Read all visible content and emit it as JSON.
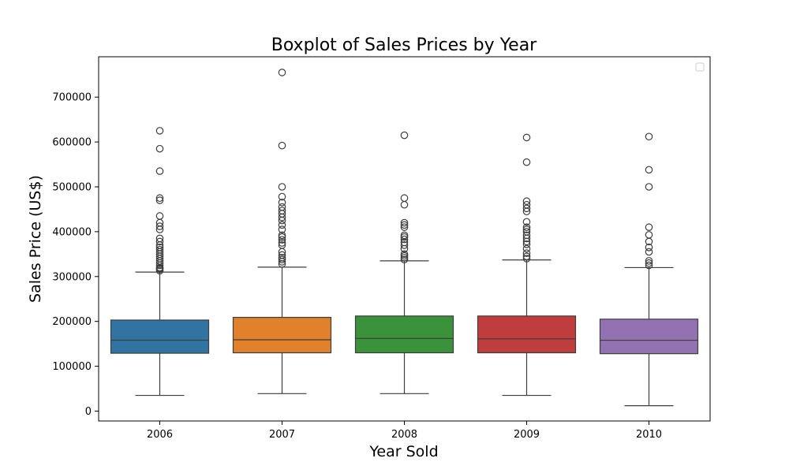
{
  "chart_data": {
    "type": "boxplot",
    "title": "Boxplot of Sales Prices by Year",
    "xlabel": "Year Sold",
    "ylabel": "Sales Price (US$)",
    "ylim": [
      -22000,
      790000
    ],
    "yticks": [
      0,
      100000,
      200000,
      300000,
      400000,
      500000,
      600000,
      700000
    ],
    "ytick_labels": [
      "0",
      "100000",
      "200000",
      "300000",
      "400000",
      "500000",
      "600000",
      "700000"
    ],
    "grid": false,
    "legend": "top-right (empty)",
    "categories": [
      "2006",
      "2007",
      "2008",
      "2009",
      "2010"
    ],
    "boxes": [
      {
        "category": "2006",
        "color": "#3274a1",
        "whisker_low": 35000,
        "q1": 129000,
        "median": 158000,
        "q3": 203000,
        "whisker_high": 310000,
        "outliers": [
          313000,
          316000,
          318000,
          320000,
          325000,
          330000,
          335000,
          340000,
          345000,
          350000,
          355000,
          360000,
          365000,
          370000,
          378000,
          385000,
          405000,
          412000,
          420000,
          435000,
          470000,
          475000,
          535000,
          585000,
          625000
        ]
      },
      {
        "category": "2007",
        "color": "#e1812c",
        "whisker_low": 39000,
        "q1": 130000,
        "median": 159000,
        "q3": 209000,
        "whisker_high": 321000,
        "outliers": [
          328000,
          333000,
          338000,
          342000,
          348000,
          355000,
          370000,
          375000,
          382000,
          388000,
          392000,
          405000,
          415000,
          425000,
          432000,
          440000,
          447000,
          455000,
          465000,
          478000,
          500000,
          592000,
          755000
        ]
      },
      {
        "category": "2008",
        "color": "#3a923a",
        "whisker_low": 39000,
        "q1": 130000,
        "median": 162000,
        "q3": 212000,
        "whisker_high": 335000,
        "outliers": [
          338000,
          342000,
          346000,
          350000,
          362000,
          370000,
          376000,
          383000,
          388000,
          392000,
          410000,
          415000,
          420000,
          460000,
          475000,
          615000
        ]
      },
      {
        "category": "2009",
        "color": "#c03d3e",
        "whisker_low": 35000,
        "q1": 130000,
        "median": 161000,
        "q3": 212000,
        "whisker_high": 337000,
        "outliers": [
          340000,
          345000,
          352000,
          362000,
          372000,
          378000,
          385000,
          392000,
          400000,
          405000,
          410000,
          422000,
          445000,
          452000,
          460000,
          468000,
          555000,
          610000
        ]
      },
      {
        "category": "2010",
        "color": "#9372b2",
        "whisker_low": 12000,
        "q1": 128000,
        "median": 158000,
        "q3": 205000,
        "whisker_high": 320000,
        "outliers": [
          325000,
          330000,
          335000,
          355000,
          365000,
          378000,
          393000,
          410000,
          500000,
          538000,
          612000
        ]
      }
    ]
  }
}
